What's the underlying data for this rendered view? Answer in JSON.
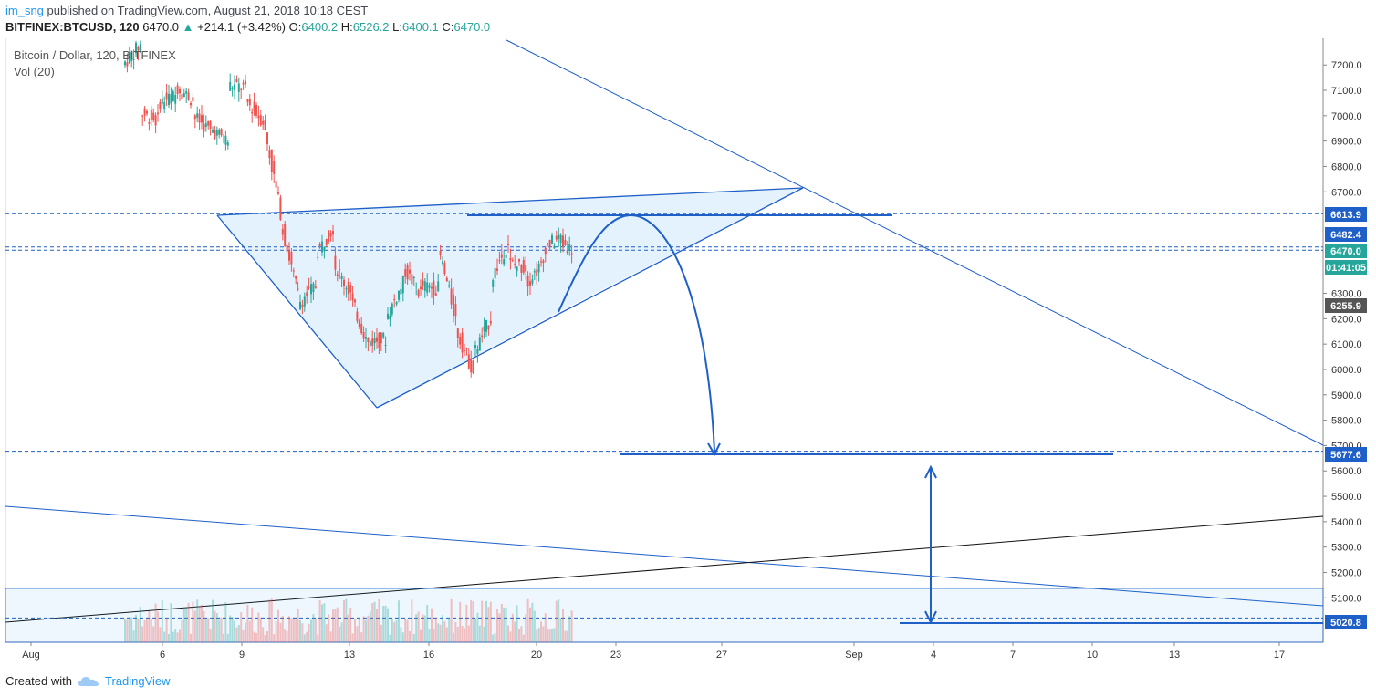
{
  "header": {
    "user": "im_sng",
    "published_text": " published on TradingView.com, August 21, 2018 10:18 CEST",
    "symbol": "BITFINEX:BTCUSD, 120",
    "last": "6470.0",
    "change_arrow": "▲",
    "change": "+214.1 (+3.42%)",
    "o_label": "O:",
    "o": "6400.2",
    "h_label": "H:",
    "h": "6526.2",
    "l_label": "L:",
    "l": "6400.1",
    "c_label": "C:",
    "c": "6470.0"
  },
  "legend": {
    "title": "Bitcoin / Dollar, 120, BITFINEX",
    "indicator": "Vol (20)"
  },
  "footer": {
    "created_with": "Created with",
    "brand": "TradingView"
  },
  "colors": {
    "up": "#26a69a",
    "down": "#ef5350",
    "drawing": "#1e5fc8",
    "accent": "#2196f3"
  },
  "chart_data": {
    "type": "candlestick",
    "title": "Bitcoin / Dollar, 120, BITFINEX",
    "ylim": [
      4925,
      7305
    ],
    "y_ticks": [
      5100,
      5200,
      5300,
      5400,
      5500,
      5600,
      5700,
      5800,
      5900,
      6000,
      6100,
      6200,
      6300,
      6700,
      6800,
      6900,
      7000,
      7100,
      7200
    ],
    "x_ticks": [
      "Aug",
      "6",
      "9",
      "13",
      "16",
      "20",
      "23",
      "27",
      "Sep",
      "4",
      "7",
      "10",
      "13",
      "17"
    ],
    "price_labels": [
      {
        "text": "6613.9",
        "bg": "#1e5fc8"
      },
      {
        "text": "6482.4",
        "bg": "#1e5fc8"
      },
      {
        "text": "6470.0",
        "bg": "#26a69a"
      },
      {
        "text": "01:41:05",
        "bg": "#26a69a"
      },
      {
        "text": "6255.9",
        "bg": "#555555"
      },
      {
        "text": "5677.6",
        "bg": "#1e5fc8"
      },
      {
        "text": "5020.8",
        "bg": "#1e5fc8"
      }
    ],
    "candles_close_anchors": [
      [
        7200,
        7280
      ],
      [
        7010,
        6980
      ],
      [
        7050,
        7080
      ],
      [
        7120,
        7060
      ],
      [
        7000,
        6940
      ],
      [
        6950,
        6900
      ],
      [
        7120,
        7110
      ],
      [
        7060,
        6980
      ],
      [
        6980,
        6620
      ],
      [
        6580,
        6300
      ],
      [
        6260,
        6330
      ],
      [
        6450,
        6560
      ],
      [
        6420,
        6300
      ],
      [
        6280,
        6100
      ],
      [
        6110,
        6120
      ],
      [
        6200,
        6340
      ],
      [
        6400,
        6300
      ],
      [
        6330,
        6320
      ],
      [
        6480,
        6200
      ],
      [
        6160,
        5990
      ],
      [
        6060,
        6200
      ],
      [
        6350,
        6500
      ],
      [
        6420,
        6400
      ],
      [
        6340,
        6420
      ],
      [
        6480,
        6520
      ],
      [
        6500,
        6460
      ],
      [
        6350,
        6330
      ],
      [
        6330,
        6400
      ],
      [
        6440,
        6380
      ],
      [
        6420,
        6380
      ],
      [
        6340,
        6450
      ],
      [
        6400,
        6470
      ]
    ],
    "volume_note": "volume bars shown along bottom"
  }
}
